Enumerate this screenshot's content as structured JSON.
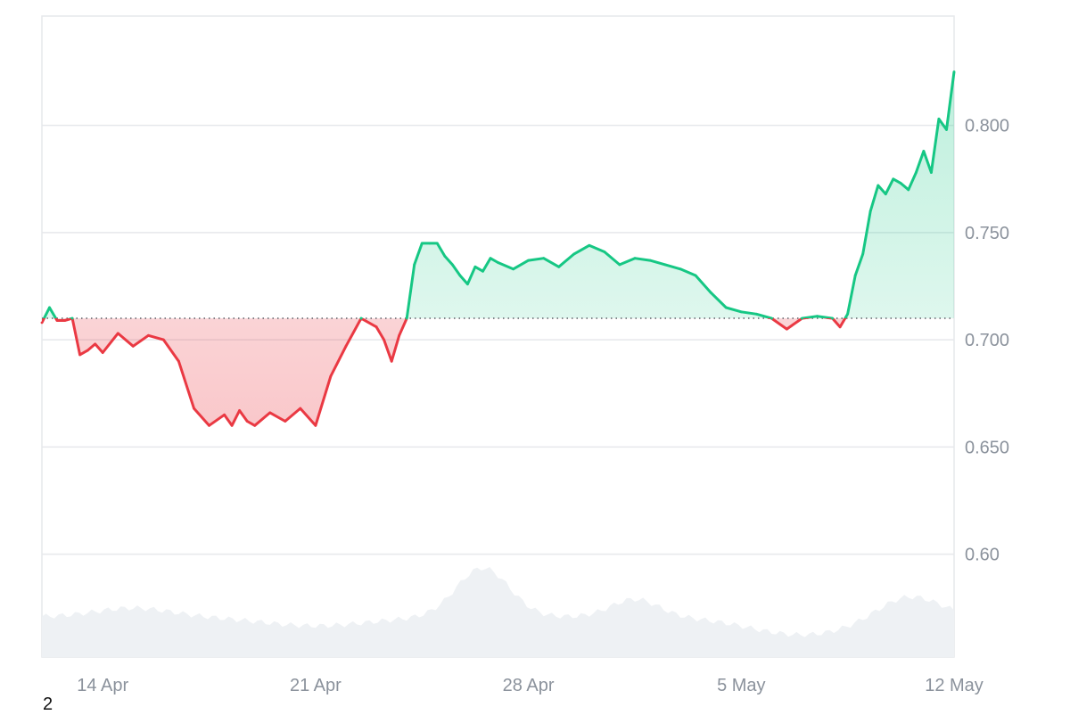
{
  "chart_data": {
    "type": "line",
    "title": "",
    "xlabel": "",
    "ylabel": "",
    "x_range": [
      "2024-04-12",
      "2024-05-12"
    ],
    "ylim": [
      0.552,
      0.851
    ],
    "baseline": 0.71,
    "yticks": [
      "0.800",
      "0.750",
      "0.700",
      "0.650",
      "0.60"
    ],
    "ytick_values": [
      0.8,
      0.75,
      0.7,
      0.65,
      0.6
    ],
    "xticks": [
      "14 Apr",
      "21 Apr",
      "28 Apr",
      "5 May",
      "12 May"
    ],
    "xtick_dates": [
      "2024-04-14",
      "2024-04-21",
      "2024-04-28",
      "2024-05-05",
      "2024-05-12"
    ],
    "grid": true,
    "colors": {
      "up_line": "#16c784",
      "down_line": "#ea3943",
      "up_fill": "#16c784",
      "down_fill": "#ea3943",
      "volume": "#eef1f4",
      "grid": "#e6e8eb",
      "tick_text": "#8b929c",
      "baseline": "#5a5f66"
    },
    "series": [
      {
        "x": [
          "2024-04-12",
          "2024-04-12T06:00",
          "2024-04-12T12:00",
          "2024-04-12T18:00",
          "2024-04-13",
          "2024-04-13T06:00",
          "2024-04-13T12:00",
          "2024-04-13T18:00",
          "2024-04-14",
          "2024-04-14T12:00",
          "2024-04-15",
          "2024-04-15T12:00",
          "2024-04-16",
          "2024-04-16T12:00",
          "2024-04-17",
          "2024-04-17T12:00",
          "2024-04-18",
          "2024-04-18T06:00",
          "2024-04-18T12:00",
          "2024-04-18T18:00",
          "2024-04-19",
          "2024-04-19T12:00",
          "2024-04-20",
          "2024-04-20T12:00",
          "2024-04-21",
          "2024-04-21T12:00",
          "2024-04-22",
          "2024-04-22T12:00",
          "2024-04-23",
          "2024-04-23T06:00",
          "2024-04-23T12:00",
          "2024-04-23T18:00",
          "2024-04-24",
          "2024-04-24T06:00",
          "2024-04-24T12:00",
          "2024-04-24T18:00",
          "2024-04-25",
          "2024-04-25T06:00",
          "2024-04-25T12:00",
          "2024-04-25T18:00",
          "2024-04-26",
          "2024-04-26T06:00",
          "2024-04-26T12:00",
          "2024-04-26T18:00",
          "2024-04-27",
          "2024-04-27T12:00",
          "2024-04-28",
          "2024-04-28T12:00",
          "2024-04-29",
          "2024-04-29T12:00",
          "2024-04-30",
          "2024-04-30T12:00",
          "2024-05-01",
          "2024-05-01T12:00",
          "2024-05-02",
          "2024-05-02T12:00",
          "2024-05-03",
          "2024-05-03T12:00",
          "2024-05-04",
          "2024-05-04T12:00",
          "2024-05-05",
          "2024-05-05T12:00",
          "2024-05-06",
          "2024-05-06T12:00",
          "2024-05-07",
          "2024-05-07T12:00",
          "2024-05-08",
          "2024-05-08T06:00",
          "2024-05-08T12:00",
          "2024-05-08T18:00",
          "2024-05-09",
          "2024-05-09T06:00",
          "2024-05-09T12:00",
          "2024-05-09T18:00",
          "2024-05-10",
          "2024-05-10T06:00",
          "2024-05-10T12:00",
          "2024-05-10T18:00",
          "2024-05-11",
          "2024-05-11T06:00",
          "2024-05-11T12:00",
          "2024-05-11T18:00",
          "2024-05-12"
        ],
        "y": [
          0.708,
          0.715,
          0.709,
          0.709,
          0.71,
          0.693,
          0.695,
          0.698,
          0.694,
          0.703,
          0.697,
          0.702,
          0.7,
          0.69,
          0.668,
          0.66,
          0.665,
          0.66,
          0.667,
          0.662,
          0.66,
          0.666,
          0.662,
          0.668,
          0.66,
          0.683,
          0.697,
          0.71,
          0.706,
          0.7,
          0.69,
          0.702,
          0.71,
          0.735,
          0.745,
          0.745,
          0.745,
          0.739,
          0.735,
          0.73,
          0.726,
          0.734,
          0.732,
          0.738,
          0.736,
          0.733,
          0.737,
          0.738,
          0.734,
          0.74,
          0.744,
          0.741,
          0.735,
          0.738,
          0.737,
          0.735,
          0.733,
          0.73,
          0.722,
          0.715,
          0.713,
          0.712,
          0.71,
          0.705,
          0.71,
          0.711,
          0.71,
          0.706,
          0.712,
          0.73,
          0.74,
          0.76,
          0.772,
          0.768,
          0.775,
          0.773,
          0.77,
          0.778,
          0.788,
          0.778,
          0.803,
          0.798,
          0.825
        ]
      }
    ]
  },
  "footer": {
    "page_number": "2"
  }
}
